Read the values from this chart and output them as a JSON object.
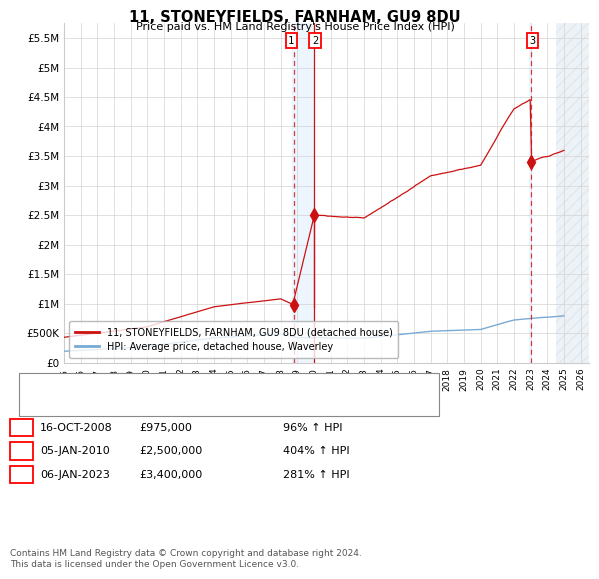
{
  "title": "11, STONEYFIELDS, FARNHAM, GU9 8DU",
  "subtitle": "Price paid vs. HM Land Registry's House Price Index (HPI)",
  "ylim": [
    0,
    5750000
  ],
  "yticks": [
    0,
    500000,
    1000000,
    1500000,
    2000000,
    2500000,
    3000000,
    3500000,
    4000000,
    4500000,
    5000000,
    5500000
  ],
  "ytick_labels": [
    "£0",
    "£500K",
    "£1M",
    "£1.5M",
    "£2M",
    "£2.5M",
    "£3M",
    "£3.5M",
    "£4M",
    "£4.5M",
    "£5M",
    "£5.5M"
  ],
  "xmin": 1995,
  "xmax": 2026.5,
  "xticks": [
    1995,
    1996,
    1997,
    1998,
    1999,
    2000,
    2001,
    2002,
    2003,
    2004,
    2005,
    2006,
    2007,
    2008,
    2009,
    2010,
    2011,
    2012,
    2013,
    2014,
    2015,
    2016,
    2017,
    2018,
    2019,
    2020,
    2021,
    2022,
    2023,
    2024,
    2025,
    2026
  ],
  "hpi_color": "#7aaad4",
  "price_color": "#cc1111",
  "vline_color": "#cc1111",
  "shade_color": "#ddeeff",
  "hatch_color": "#bbccdd",
  "legend_label_price": "11, STONEYFIELDS, FARNHAM, GU9 8DU (detached house)",
  "legend_label_hpi": "HPI: Average price, detached house, Waverley",
  "trans1_x": 2008.79,
  "trans1_y": 975000,
  "trans2_x": 2010.01,
  "trans2_y": 2500000,
  "trans3_x": 2023.01,
  "trans3_y": 3400000,
  "shade1_xmin": 2008.71,
  "shade1_xmax": 2010.05,
  "shade2_xmin": 2022.9,
  "shade2_xmax": 2023.1,
  "hatch_xmin": 2024.5,
  "hatch_xmax": 2027,
  "table_rows": [
    {
      "num": "1",
      "date": "16-OCT-2008",
      "price": "£975,000",
      "change": "96% ↑ HPI"
    },
    {
      "num": "2",
      "date": "05-JAN-2010",
      "price": "£2,500,000",
      "change": "404% ↑ HPI"
    },
    {
      "num": "3",
      "date": "06-JAN-2023",
      "price": "£3,400,000",
      "change": "281% ↑ HPI"
    }
  ],
  "footer": "Contains HM Land Registry data © Crown copyright and database right 2024.\nThis data is licensed under the Open Government Licence v3.0."
}
